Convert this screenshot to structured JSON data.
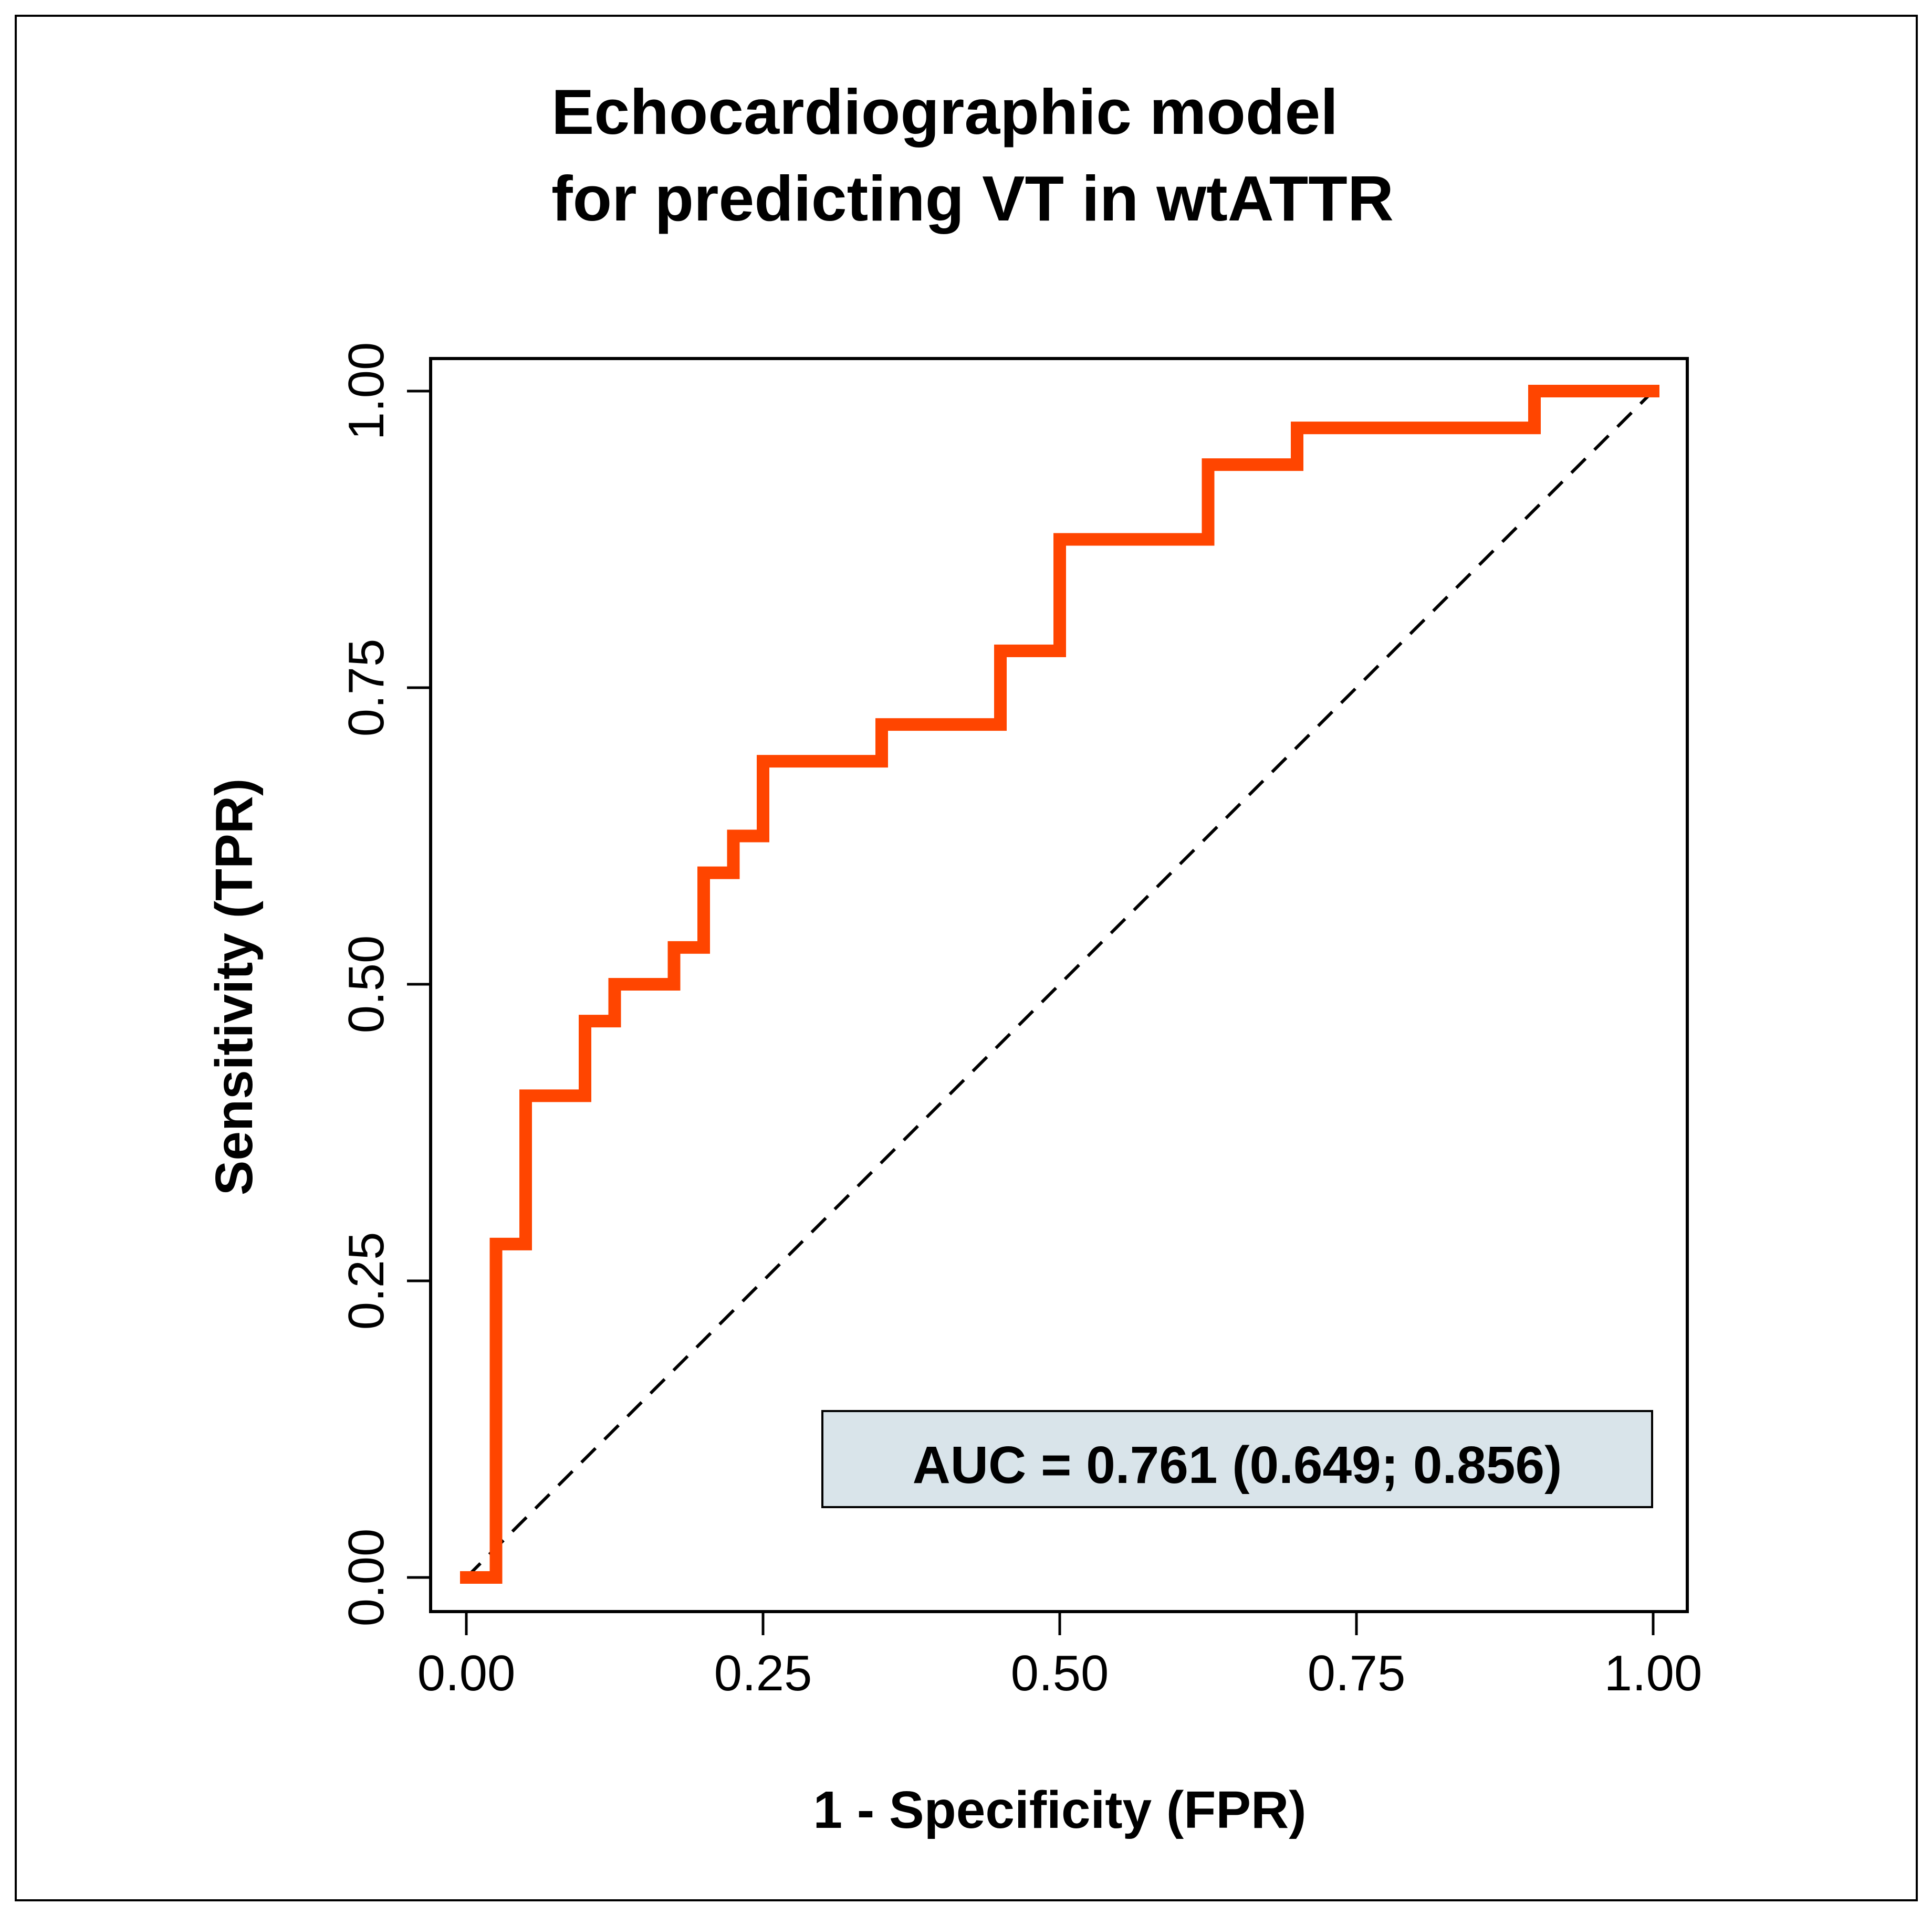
{
  "chart_data": {
    "type": "line",
    "title": [
      "Echocardiographic model",
      "for predicting VT in wtATTR"
    ],
    "xlabel": "1 - Specificity (FPR)",
    "ylabel": "Sensitivity (TPR)",
    "xlim": [
      0,
      1
    ],
    "ylim": [
      0,
      1
    ],
    "x_ticks": [
      0,
      0.25,
      0.5,
      0.75,
      1
    ],
    "x_tick_labels": [
      "0.00",
      "0.25",
      "0.50",
      "0.75",
      "1.00"
    ],
    "y_ticks": [
      0,
      0.25,
      0.5,
      0.75,
      1
    ],
    "y_tick_labels": [
      "0.00",
      "0.25",
      "0.50",
      "0.75",
      "1.00"
    ],
    "grid": false,
    "series": [
      {
        "name": "ROC curve",
        "color": "#FF4500",
        "x": [
          0.0,
          0.025,
          0.025,
          0.05,
          0.05,
          0.1,
          0.1,
          0.125,
          0.125,
          0.175,
          0.175,
          0.2,
          0.2,
          0.225,
          0.225,
          0.25,
          0.25,
          0.35,
          0.35,
          0.45,
          0.45,
          0.5,
          0.5,
          0.625,
          0.625,
          0.7,
          0.7,
          0.9,
          0.9,
          1.0
        ],
        "y": [
          0.0,
          0.0,
          0.281,
          0.281,
          0.406,
          0.406,
          0.469,
          0.469,
          0.5,
          0.5,
          0.531,
          0.531,
          0.594,
          0.594,
          0.625,
          0.625,
          0.688,
          0.688,
          0.719,
          0.719,
          0.781,
          0.781,
          0.875,
          0.875,
          0.938,
          0.938,
          0.969,
          0.969,
          1.0,
          1.0
        ]
      },
      {
        "name": "Reference (chance)",
        "color": "#000000",
        "style": "dashed",
        "x": [
          0,
          1
        ],
        "y": [
          0,
          1
        ]
      }
    ],
    "annotations": [
      {
        "text": "AUC = 0.761 (0.649; 0.856)",
        "position": "bottom-right",
        "background": "#D9E4EA"
      }
    ]
  }
}
